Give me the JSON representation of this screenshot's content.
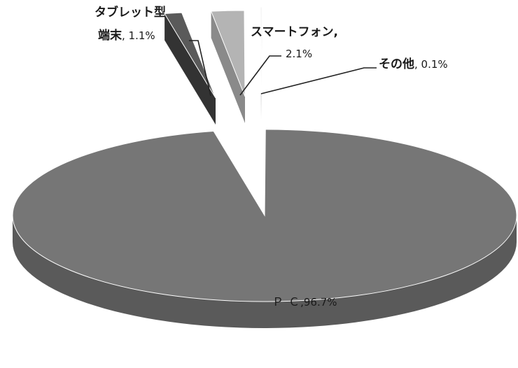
{
  "chart_data": {
    "type": "pie",
    "style": "3d-exploded",
    "title": "",
    "slices": [
      {
        "label": "ＰＣ",
        "value": 96.7,
        "value_text": "96.7%",
        "color": "#767676",
        "side_color": "#5a5a5a"
      },
      {
        "label": "タブレット型端末",
        "value": 1.1,
        "value_text": "1.1%",
        "color": "#5a5a5a",
        "side_color": "#333333"
      },
      {
        "label": "スマートフォン",
        "value": 2.1,
        "value_text": "2.1%",
        "color": "#b4b4b4",
        "side_color": "#8a8a8a"
      },
      {
        "label": "その他",
        "value": 0.1,
        "value_text": "0.1%",
        "color": "#f2f2f2",
        "side_color": "#bdbdbd"
      }
    ],
    "legend": "none",
    "labels": {
      "pc": "Ｐ Ｃ",
      "pc_value": ",96.7%",
      "tablet_line1": "タブレット型",
      "tablet_line2": "端末",
      "tablet_value": ", 1.1%",
      "smartphone_line1": "スマートフォン,",
      "smartphone_value": "2.1%",
      "other": "その他",
      "other_value": ", 0.1%"
    }
  }
}
